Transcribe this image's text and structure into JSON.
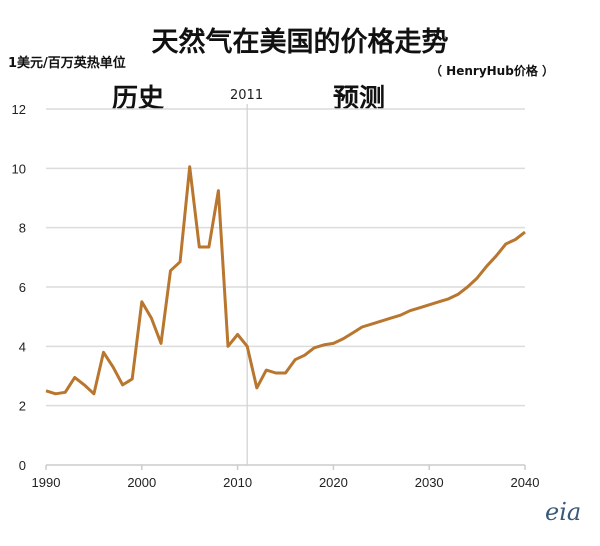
{
  "chart_data": {
    "type": "line",
    "title": "天然气在美国的价格走势",
    "subtitle": "（ HenryHub价格 ）",
    "ylabel": "1美元/百万英热单位",
    "xlabel": "",
    "xlim": [
      1990,
      2040
    ],
    "ylim": [
      0,
      12
    ],
    "xticks": [
      1990,
      2000,
      2010,
      2020,
      2030,
      2040
    ],
    "yticks": [
      0,
      2,
      4,
      6,
      8,
      10,
      12
    ],
    "grid": true,
    "divider": {
      "x": 2011,
      "label": "2011"
    },
    "region_labels": {
      "history": "历史",
      "forecast": "预测"
    },
    "line_color": "#b8762e",
    "series": [
      {
        "name": "Henry Hub",
        "x": [
          1990,
          1991,
          1992,
          1993,
          1994,
          1995,
          1996,
          1997,
          1998,
          1999,
          2000,
          2001,
          2002,
          2003,
          2004,
          2005,
          2006,
          2007,
          2008,
          2009,
          2010,
          2011,
          2012,
          2013,
          2014,
          2015,
          2016,
          2017,
          2018,
          2019,
          2020,
          2021,
          2022,
          2023,
          2024,
          2025,
          2026,
          2027,
          2028,
          2029,
          2030,
          2031,
          2032,
          2033,
          2034,
          2035,
          2036,
          2037,
          2038,
          2039,
          2040
        ],
        "values": [
          2.5,
          2.4,
          2.45,
          2.95,
          2.7,
          2.4,
          3.8,
          3.3,
          2.7,
          2.9,
          5.5,
          4.95,
          4.1,
          6.55,
          6.85,
          10.05,
          7.35,
          7.35,
          9.25,
          4.0,
          4.4,
          4.0,
          2.6,
          3.2,
          3.1,
          3.1,
          3.55,
          3.7,
          3.95,
          4.05,
          4.1,
          4.25,
          4.45,
          4.65,
          4.75,
          4.85,
          4.95,
          5.05,
          5.2,
          5.3,
          5.4,
          5.5,
          5.6,
          5.75,
          6.0,
          6.3,
          6.7,
          7.05,
          7.45,
          7.6,
          7.85
        ]
      }
    ]
  },
  "logo": "eia"
}
